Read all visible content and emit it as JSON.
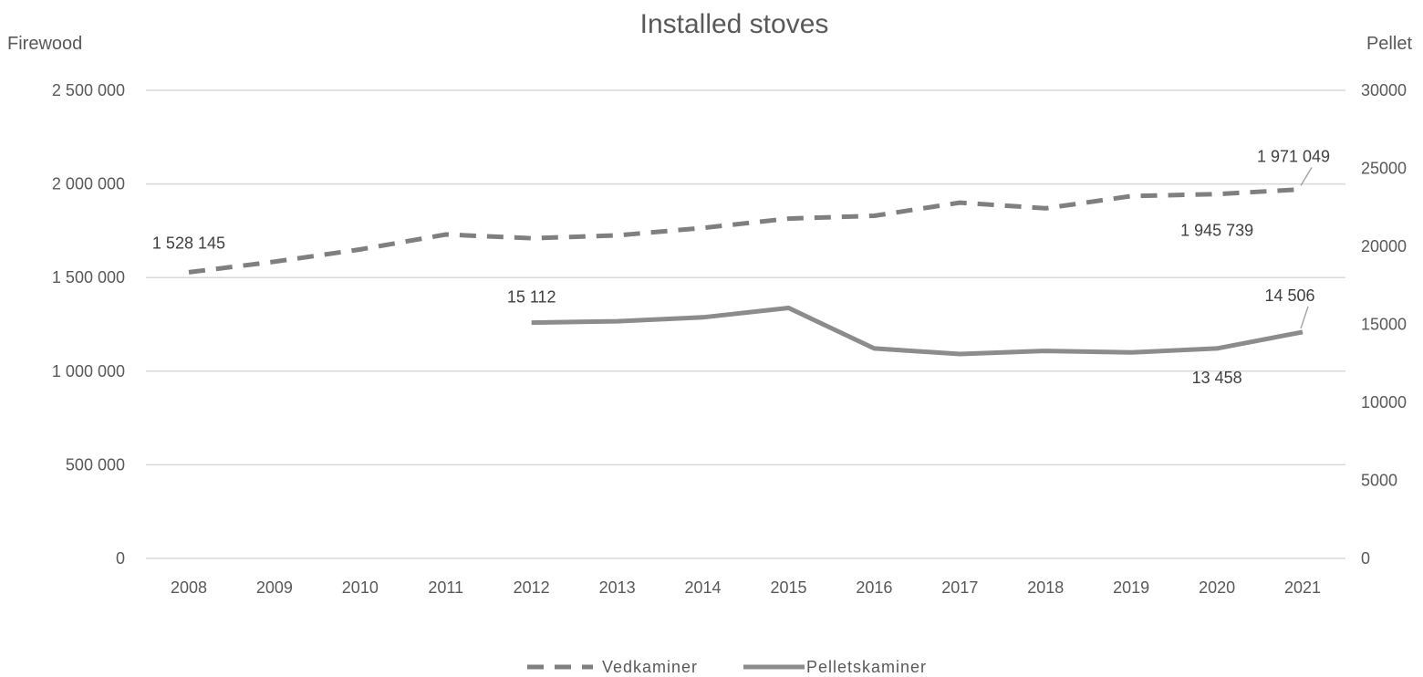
{
  "chart_data": {
    "type": "line",
    "title": "Installed stoves",
    "y_left_label": "Firewood",
    "y_right_label": "Pellet",
    "categories": [
      "2008",
      "2009",
      "2010",
      "2011",
      "2012",
      "2013",
      "2014",
      "2015",
      "2016",
      "2017",
      "2018",
      "2019",
      "2020",
      "2021"
    ],
    "y_left_ticks": [
      "0",
      "500 000",
      "1 000 000",
      "1 500 000",
      "2 000 000",
      "2 500 000"
    ],
    "y_left_range": [
      0,
      2500000
    ],
    "y_right_ticks": [
      "0",
      "5000",
      "10000",
      "15000",
      "20000",
      "25000",
      "30000"
    ],
    "y_right_range": [
      0,
      30000
    ],
    "grid": true,
    "legend_position": "bottom-center",
    "series": [
      {
        "name": "Vedkaminer",
        "axis": "left",
        "style": "dashed",
        "color": "#7f7f7f",
        "values": [
          1528145,
          1585000,
          1650000,
          1730000,
          1710000,
          1725000,
          1765000,
          1815000,
          1830000,
          1900000,
          1870000,
          1935000,
          1945739,
          1971049
        ]
      },
      {
        "name": "Pelletskaminer",
        "axis": "right",
        "style": "solid",
        "color": "#8c8c8c",
        "values": [
          null,
          null,
          null,
          null,
          15112,
          15200,
          15450,
          16050,
          13458,
          13100,
          13300,
          13200,
          13458,
          14506
        ]
      }
    ],
    "data_labels": [
      {
        "series": 0,
        "index": 0,
        "text": "1 528 145"
      },
      {
        "series": 0,
        "index": 12,
        "text": "1 945 739"
      },
      {
        "series": 0,
        "index": 13,
        "text": "1 971 049"
      },
      {
        "series": 1,
        "index": 4,
        "text": "15 112"
      },
      {
        "series": 1,
        "index": 12,
        "text": "13 458"
      },
      {
        "series": 1,
        "index": 13,
        "text": "14 506"
      }
    ]
  }
}
